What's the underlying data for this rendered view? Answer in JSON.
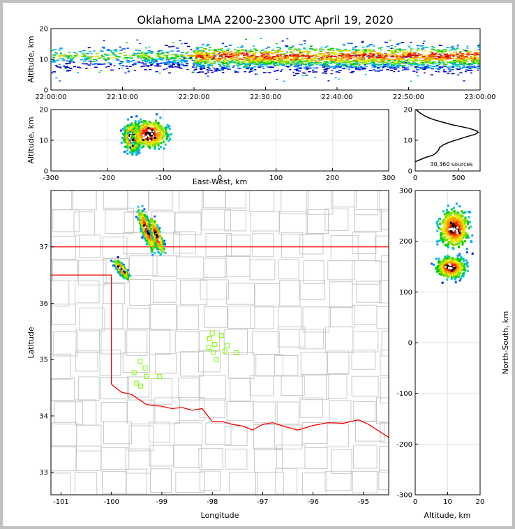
{
  "chart_data": {
    "type": "scatter",
    "title": "Oklahoma LMA 2200-2300 UTC April 19, 2020",
    "sources_label": "30,360 sources",
    "panels": {
      "time_height": {
        "ylabel": "Altitude, km",
        "ylim": [
          0,
          20
        ],
        "yticks": [
          "0",
          "10",
          "20"
        ],
        "xlim_minutes": [
          0,
          60
        ],
        "xticks": [
          "22:00:00",
          "22:10:00",
          "22:20:00",
          "22:30:00",
          "22:40:00",
          "22:50:00",
          "23:00:00"
        ]
      },
      "ew_height": {
        "ylabel": "Altitude, km",
        "xlabel": "East-West, km",
        "xlim": [
          -300,
          300
        ],
        "ylim": [
          0,
          20
        ],
        "xticks": [
          "-300",
          "-200",
          "-100",
          "0",
          "100",
          "200",
          "300"
        ],
        "yticks": [
          "0",
          "10",
          "20"
        ]
      },
      "histogram": {
        "xlim": [
          0,
          750
        ],
        "ylim": [
          0,
          20
        ],
        "xticks": [
          "0",
          "500"
        ],
        "yticks": [
          "0",
          "10",
          "20"
        ],
        "profile": [
          [
            0,
            3
          ],
          [
            50,
            3.6
          ],
          [
            100,
            4.2
          ],
          [
            150,
            4.7
          ],
          [
            200,
            5.1
          ],
          [
            230,
            5.6
          ],
          [
            250,
            6.2
          ],
          [
            270,
            6.8
          ],
          [
            280,
            7.6
          ],
          [
            320,
            8.4
          ],
          [
            380,
            9.2
          ],
          [
            440,
            9.8
          ],
          [
            520,
            10.5
          ],
          [
            600,
            11.2
          ],
          [
            690,
            11.9
          ],
          [
            730,
            12.6
          ],
          [
            700,
            13.2
          ],
          [
            620,
            13.9
          ],
          [
            520,
            14.5
          ],
          [
            420,
            15.1
          ],
          [
            330,
            15.8
          ],
          [
            240,
            16.5
          ],
          [
            160,
            17.3
          ],
          [
            100,
            18.1
          ],
          [
            50,
            19
          ],
          [
            10,
            20
          ]
        ]
      },
      "plan": {
        "xlabel": "Longitude",
        "ylabel": "Latitude",
        "xlim": [
          -101.2,
          -94.5
        ],
        "ylim": [
          32.6,
          38.0
        ],
        "xticks": [
          "-101",
          "-100",
          "-99",
          "-98",
          "-97",
          "-96",
          "-95"
        ],
        "yticks": [
          "33",
          "34",
          "35",
          "36",
          "37"
        ]
      },
      "ns_height": {
        "xlabel": "Altitude, km",
        "ylabel": "North-South, km",
        "xlim": [
          0,
          20
        ],
        "ylim": [
          -300,
          300
        ],
        "xticks": [
          "0",
          "10",
          "20"
        ],
        "yticks": [
          "-300",
          "-200",
          "-100",
          "0",
          "100",
          "200",
          "300"
        ]
      }
    },
    "stations": [
      [
        -98.0,
        35.47
      ],
      [
        -97.82,
        35.43
      ],
      [
        -98.05,
        35.37
      ],
      [
        -97.95,
        35.27
      ],
      [
        -98.07,
        35.22
      ],
      [
        -97.7,
        35.25
      ],
      [
        -97.75,
        35.15
      ],
      [
        -97.98,
        35.13
      ],
      [
        -97.52,
        35.12
      ],
      [
        -97.92,
        35.0
      ],
      [
        -99.43,
        34.97
      ],
      [
        -99.33,
        34.85
      ],
      [
        -99.55,
        34.77
      ],
      [
        -99.3,
        34.7
      ],
      [
        -99.05,
        34.7
      ],
      [
        -99.5,
        34.58
      ],
      [
        -99.42,
        34.53
      ]
    ],
    "storms_plan": [
      {
        "lon": -99.3,
        "lat": 37.3,
        "slon": 0.15,
        "slat": 0.22,
        "n": 650
      },
      {
        "lon": -99.1,
        "lat": 37.2,
        "slon": 0.13,
        "slat": 0.2,
        "n": 320
      },
      {
        "lon": -99.8,
        "lat": 36.6,
        "slon": 0.13,
        "slat": 0.1,
        "n": 420
      }
    ],
    "storms_ew": [
      {
        "x": -155,
        "z": 11,
        "sx": 10,
        "sz": 3.2,
        "n": 520
      },
      {
        "x": -125,
        "z": 12,
        "sx": 22,
        "sz": 3,
        "n": 480
      }
    ],
    "storms_ns": [
      {
        "y": 225,
        "z": 12,
        "sy": 25,
        "sz": 3.2,
        "n": 520
      },
      {
        "y": 148,
        "z": 11,
        "sy": 14,
        "sz": 3,
        "n": 460
      }
    ],
    "colors": {
      "red_line": "#ff0000",
      "station": "#7cfc00",
      "county": "#c8c8c8"
    }
  }
}
